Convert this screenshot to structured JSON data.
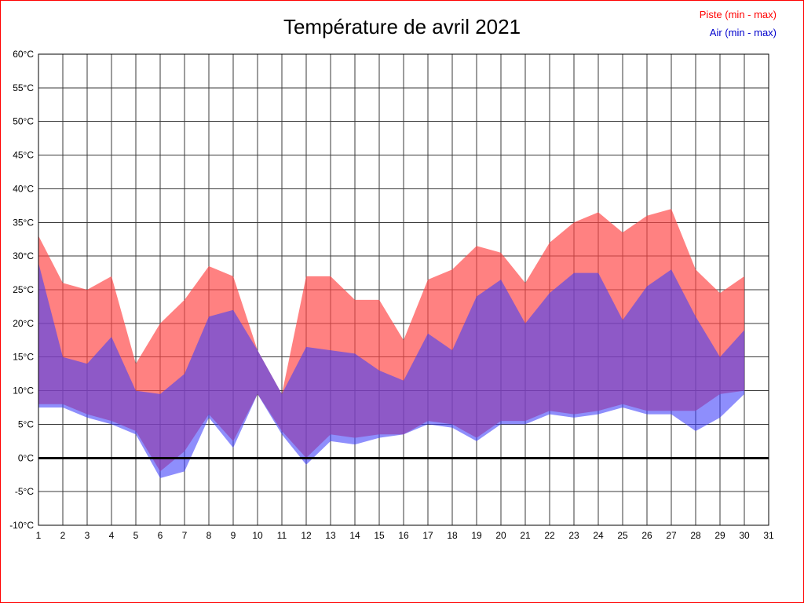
{
  "page": {
    "background_color": "#ffffff",
    "border_color": "#ff0000"
  },
  "title": "Température de avril 2021",
  "legend": [
    {
      "key": "piste",
      "label": "Piste (min - max)",
      "color": "#ff0000"
    },
    {
      "key": "air",
      "label": "Air (min - max)",
      "color": "#0000cc"
    }
  ],
  "chart_data": {
    "type": "area",
    "title": "Température de avril 2021",
    "xlabel": "",
    "ylabel": "",
    "xlim": [
      1,
      31
    ],
    "ylim": [
      -10,
      60
    ],
    "grid": true,
    "grid_color": "#3a3a3a",
    "zero_line": {
      "value": 0,
      "color": "#000000",
      "width": 3
    },
    "x_ticks": [
      "1",
      "2",
      "3",
      "4",
      "5",
      "6",
      "7",
      "8",
      "9",
      "10",
      "11",
      "12",
      "13",
      "14",
      "15",
      "16",
      "17",
      "18",
      "19",
      "20",
      "21",
      "22",
      "23",
      "24",
      "25",
      "26",
      "27",
      "28",
      "29",
      "30",
      "31"
    ],
    "y_ticks": [
      {
        "value": 60,
        "label": "60°C"
      },
      {
        "value": 55,
        "label": "55°C"
      },
      {
        "value": 50,
        "label": "50°C"
      },
      {
        "value": 45,
        "label": "45°C"
      },
      {
        "value": 40,
        "label": "40°C"
      },
      {
        "value": 35,
        "label": "35°C"
      },
      {
        "value": 30,
        "label": "30°C"
      },
      {
        "value": 25,
        "label": "25°C"
      },
      {
        "value": 20,
        "label": "20°C"
      },
      {
        "value": 15,
        "label": "15°C"
      },
      {
        "value": 10,
        "label": "10°C"
      },
      {
        "value": 5,
        "label": "5°C"
      },
      {
        "value": 0,
        "label": "0°C"
      },
      {
        "value": -5,
        "label": "-5°C"
      },
      {
        "value": -10,
        "label": "-10°C"
      }
    ],
    "days": [
      1,
      2,
      3,
      4,
      5,
      6,
      7,
      8,
      9,
      10,
      11,
      12,
      13,
      14,
      15,
      16,
      17,
      18,
      19,
      20,
      21,
      22,
      23,
      24,
      25,
      26,
      27,
      28,
      29,
      30
    ],
    "series": [
      {
        "key": "piste",
        "name": "Piste (min - max)",
        "fill": "rgba(255,70,70,0.68)",
        "max": [
          33,
          26,
          25,
          27,
          14,
          20,
          23.5,
          28.5,
          27,
          16,
          9.5,
          27,
          27,
          23.5,
          23.5,
          17.5,
          26.5,
          28,
          31.5,
          30.5,
          26,
          32,
          35,
          36.5,
          33.5,
          36,
          37,
          28,
          24.5,
          27
        ],
        "min": [
          8,
          8,
          6.5,
          5.5,
          4,
          -2,
          1,
          6.5,
          2.5,
          9.5,
          4,
          0,
          3.5,
          3,
          3.5,
          3.5,
          5.5,
          5,
          3,
          5.5,
          5.5,
          7,
          6.5,
          7,
          8,
          7,
          7,
          7,
          9.5,
          10
        ]
      },
      {
        "key": "air",
        "name": "Air (min - max)",
        "fill": "rgba(60,60,250,0.58)",
        "max": [
          29,
          15,
          14,
          18,
          10,
          9.5,
          12.5,
          21,
          22,
          16,
          9.5,
          16.5,
          16,
          15.5,
          13,
          11.5,
          18.5,
          16,
          24,
          26.5,
          20,
          24.5,
          27.5,
          27.5,
          20.5,
          25.5,
          28,
          21,
          15,
          19
        ],
        "min": [
          7.5,
          7.5,
          6,
          5,
          3.5,
          -3,
          -2,
          6,
          1.5,
          9.5,
          3.5,
          -1,
          2.5,
          2,
          3,
          3.5,
          5,
          4.5,
          2.5,
          5,
          5,
          6.5,
          6,
          6.5,
          7.5,
          6.5,
          6.5,
          4,
          6,
          9.5
        ]
      }
    ]
  }
}
